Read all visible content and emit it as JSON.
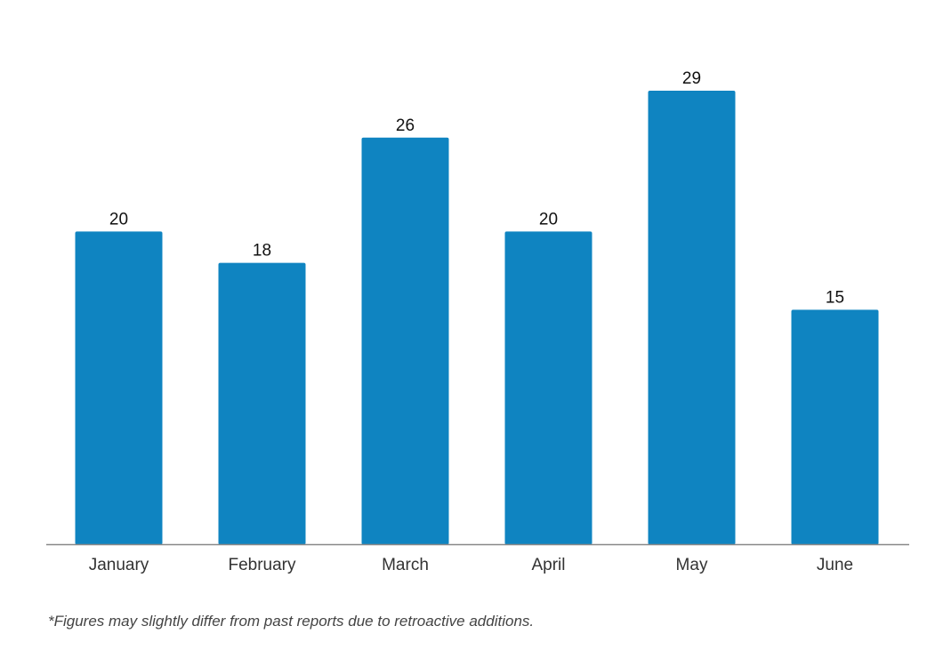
{
  "chart_data": {
    "type": "bar",
    "categories": [
      "January",
      "February",
      "March",
      "April",
      "May",
      "June"
    ],
    "values": [
      20,
      18,
      26,
      20,
      29,
      15
    ],
    "title": "",
    "xlabel": "",
    "ylabel": "",
    "ylim": [
      0,
      29
    ],
    "grid": false,
    "legend": "none",
    "data_labels": true,
    "colors": {
      "bar": "#0f84c1",
      "axis": "#888888",
      "label": "#111111",
      "tick_label": "#333333"
    }
  },
  "footnote": "*Figures may slightly differ from past reports due to retroactive additions."
}
